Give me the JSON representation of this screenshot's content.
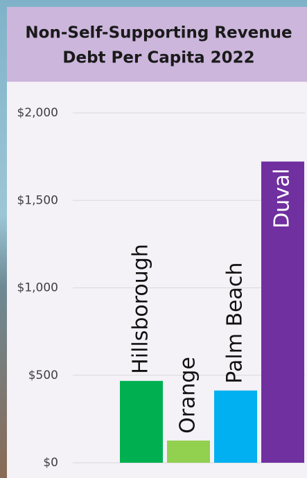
{
  "chart_data": {
    "type": "bar",
    "title": [
      "Non-Self-Supporting Revenue",
      "Debt Per Capita 2022"
    ],
    "categories": [
      "Hillsborough",
      "Orange",
      "Palm Beach",
      "Duval"
    ],
    "values": [
      468,
      127,
      413,
      1722
    ],
    "colors": [
      "#00b050",
      "#92d050",
      "#00b0f0",
      "#7030a0"
    ],
    "ylim": [
      0,
      2000
    ],
    "yticks": [
      {
        "value": 0,
        "label": "$0"
      },
      {
        "value": 500,
        "label": "$500"
      },
      {
        "value": 1000,
        "label": "$1,000"
      },
      {
        "value": 1500,
        "label": "$1,500"
      },
      {
        "value": 2000,
        "label": "$2,000"
      }
    ],
    "grid": true
  }
}
